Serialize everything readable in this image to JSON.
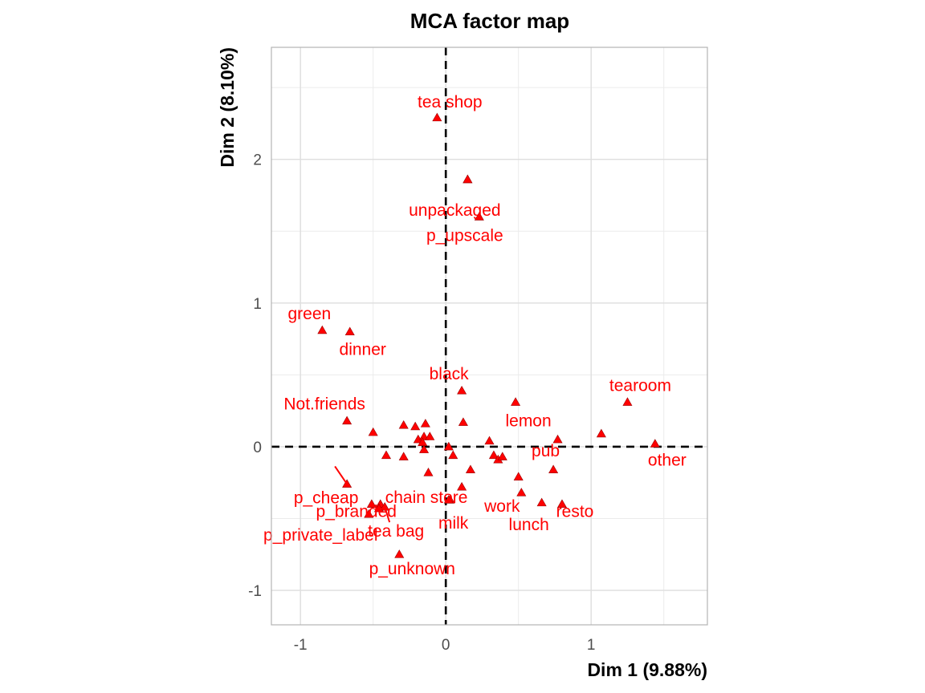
{
  "chart_data": {
    "type": "scatter",
    "title": "MCA factor map",
    "xlabel": "Dim 1 (9.88%)",
    "ylabel": "Dim 2 (8.10%)",
    "xlim": [
      -1.2,
      1.8
    ],
    "ylim": [
      -1.24,
      2.78
    ],
    "xticks": [
      -1,
      0,
      1
    ],
    "yticks": [
      -1,
      0,
      1,
      2
    ],
    "grid": true,
    "reference_lines": {
      "x": 0,
      "y": 0,
      "style": "dashed"
    },
    "marker": "triangle",
    "point_color": "#ff0000",
    "points": [
      {
        "label": "tea shop",
        "x": -0.06,
        "y": 2.29
      },
      {
        "label": "",
        "x": 0.15,
        "y": 1.86
      },
      {
        "label": "unpackaged",
        "x": 0.15,
        "y": 1.86
      },
      {
        "label": "p_upscale",
        "x": 0.23,
        "y": 1.6
      },
      {
        "label": "green",
        "x": -0.85,
        "y": 0.81
      },
      {
        "label": "dinner",
        "x": -0.66,
        "y": 0.8
      },
      {
        "label": "black",
        "x": 0.11,
        "y": 0.39
      },
      {
        "label": "lemon",
        "x": 0.48,
        "y": 0.31
      },
      {
        "label": "tearoom",
        "x": 1.25,
        "y": 0.31
      },
      {
        "label": "Not.friends",
        "x": -0.68,
        "y": 0.18
      },
      {
        "label": "pub",
        "x": 0.77,
        "y": 0.05
      },
      {
        "label": "other",
        "x": 1.44,
        "y": 0.02
      },
      {
        "label": "p_cheap",
        "x": -0.68,
        "y": -0.26
      },
      {
        "label": "p_branded",
        "x": -0.45,
        "y": -0.4
      },
      {
        "label": "chain store",
        "x": 0.11,
        "y": -0.28
      },
      {
        "label": "work",
        "x": 0.52,
        "y": -0.32
      },
      {
        "label": "resto",
        "x": 0.8,
        "y": -0.4
      },
      {
        "label": "lunch",
        "x": 0.66,
        "y": -0.39
      },
      {
        "label": "milk",
        "x": 0.03,
        "y": -0.37
      },
      {
        "label": "p_private_label",
        "x": -0.53,
        "y": -0.47
      },
      {
        "label": "tea bag",
        "x": -0.42,
        "y": -0.42
      },
      {
        "label": "p_unknown",
        "x": -0.32,
        "y": -0.75
      },
      {
        "label": "",
        "x": -0.5,
        "y": 0.1
      },
      {
        "label": "",
        "x": -0.29,
        "y": 0.15
      },
      {
        "label": "",
        "x": -0.21,
        "y": 0.14
      },
      {
        "label": "",
        "x": -0.14,
        "y": 0.16
      },
      {
        "label": "",
        "x": -0.19,
        "y": 0.05
      },
      {
        "label": "",
        "x": -0.15,
        "y": 0.07
      },
      {
        "label": "",
        "x": -0.11,
        "y": 0.07
      },
      {
        "label": "",
        "x": -0.16,
        "y": 0.03
      },
      {
        "label": "",
        "x": -0.15,
        "y": -0.02
      },
      {
        "label": "",
        "x": -0.41,
        "y": -0.06
      },
      {
        "label": "",
        "x": -0.29,
        "y": -0.07
      },
      {
        "label": "",
        "x": 0.02,
        "y": 0.0
      },
      {
        "label": "",
        "x": 0.05,
        "y": -0.06
      },
      {
        "label": "",
        "x": 0.12,
        "y": 0.17
      },
      {
        "label": "",
        "x": 0.3,
        "y": 0.04
      },
      {
        "label": "",
        "x": 0.33,
        "y": -0.06
      },
      {
        "label": "",
        "x": 0.36,
        "y": -0.09
      },
      {
        "label": "",
        "x": 0.39,
        "y": -0.07
      },
      {
        "label": "",
        "x": 0.17,
        "y": -0.16
      },
      {
        "label": "",
        "x": -0.12,
        "y": -0.18
      },
      {
        "label": "",
        "x": 0.5,
        "y": -0.21
      },
      {
        "label": "",
        "x": 0.74,
        "y": -0.16
      },
      {
        "label": "",
        "x": 1.07,
        "y": 0.09
      },
      {
        "label": "",
        "x": 0.02,
        "y": -0.37
      },
      {
        "label": "",
        "x": -0.51,
        "y": -0.4
      },
      {
        "label": "",
        "x": -0.46,
        "y": -0.43
      }
    ]
  }
}
